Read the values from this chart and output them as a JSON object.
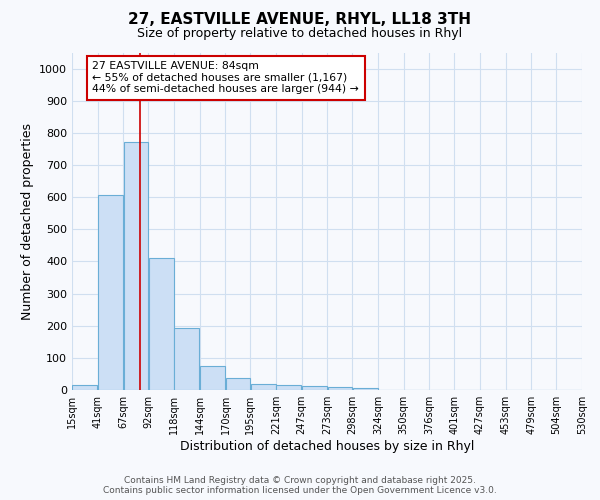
{
  "title_line1": "27, EASTVILLE AVENUE, RHYL, LL18 3TH",
  "title_line2": "Size of property relative to detached houses in Rhyl",
  "xlabel": "Distribution of detached houses by size in Rhyl",
  "ylabel": "Number of detached properties",
  "annotation_line1": "27 EASTVILLE AVENUE: 84sqm",
  "annotation_line2": "← 55% of detached houses are smaller (1,167)",
  "annotation_line3": "44% of semi-detached houses are larger (944) →",
  "bin_labels": [
    "15sqm",
    "41sqm",
    "67sqm",
    "92sqm",
    "118sqm",
    "144sqm",
    "170sqm",
    "195sqm",
    "221sqm",
    "247sqm",
    "273sqm",
    "298sqm",
    "324sqm",
    "350sqm",
    "376sqm",
    "401sqm",
    "427sqm",
    "453sqm",
    "479sqm",
    "504sqm",
    "530sqm"
  ],
  "bar_heights": [
    15,
    606,
    770,
    410,
    192,
    76,
    38,
    18,
    15,
    12,
    10,
    7,
    0,
    0,
    0,
    0,
    0,
    0,
    0,
    0
  ],
  "bar_color": "#ccdff5",
  "bar_edge_color": "#6aaed6",
  "red_line_x": 84,
  "red_line_color": "#cc0000",
  "ylim": [
    0,
    1050
  ],
  "yticks": [
    0,
    100,
    200,
    300,
    400,
    500,
    600,
    700,
    800,
    900,
    1000
  ],
  "background_color": "#f7f9fd",
  "grid_color": "#d0dff0",
  "footer_line1": "Contains HM Land Registry data © Crown copyright and database right 2025.",
  "footer_line2": "Contains public sector information licensed under the Open Government Licence v3.0.",
  "annotation_box_edge_color": "#cc0000",
  "annotation_box_face_color": "#ffffff"
}
